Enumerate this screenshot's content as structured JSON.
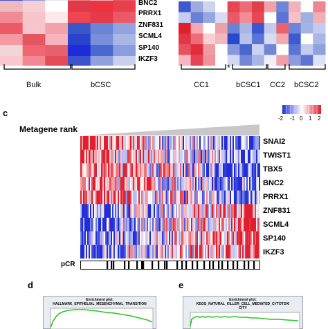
{
  "panel_top": {
    "genes": [
      "BNC2",
      "PRRX1",
      "ZNF831",
      "SCML4",
      "SP140",
      "IKZF3"
    ],
    "left_groups": [
      "Bulk",
      "bCSC"
    ],
    "right_groups": [
      "CC1",
      "bCSC1",
      "CC2",
      "bCSC2"
    ],
    "asterisk": "*",
    "left_rows": [
      [
        "#f0b8bf",
        "#f4d0d4",
        "#ffffff",
        "#e03a48",
        "#ee3340",
        "#e8404c"
      ],
      [
        "#f08a94",
        "#f6c4ca",
        "#fde8ea",
        "#ef4553",
        "#e53a47",
        "#ec5966"
      ],
      [
        "#ec5a67",
        "#f7c5cc",
        "#f3a2ab",
        "#3858c8",
        "#6a84d6",
        "#92a3df"
      ],
      [
        "#f59aa3",
        "#e55662",
        "#f6b4bc",
        "#2a43cf",
        "#7a8fdb",
        "#aab6e6"
      ],
      [
        "#f2d5d9",
        "#ef6570",
        "#e6616c",
        "#1e2bd8",
        "#4b68d2",
        "#8a9edf"
      ],
      [
        "#f7c8ce",
        "#f28891",
        "#e34b57",
        "#3c52cc",
        "#90a1de",
        "#c8d0ee"
      ]
    ],
    "right_rows": [
      [
        "#3f5ad0",
        "#9cabe2",
        "#cdd4ef",
        "#ffffff",
        "#e84452",
        "#ee6a75",
        "#e0404e",
        "#f2a1a9",
        "#6f86d8",
        "#f2b2b9",
        "#ffffff",
        "#ed8690"
      ],
      [
        "#c4cdef",
        "#6a80d6",
        "#97a7e1",
        "#d8dcf2",
        "#ea5a66",
        "#f48c96",
        "#e84853",
        "#ffffff",
        "#5a74d4",
        "#f7c0c6",
        "#9db0e3",
        "#f1aeb5"
      ],
      [
        "#e01e2d",
        "#f6a7af",
        "#ffffff",
        "#eea0a8",
        "#6a82d6",
        "#a8b6e6",
        "#3c58cc",
        "#c1cbee",
        "#e9626d",
        "#6e86d8",
        "#a4b3e5",
        "#c2cdee"
      ],
      [
        "#e23644",
        "#ec6d78",
        "#f8cfd4",
        "#f2b8be",
        "#2a48cb",
        "#b7c3ea",
        "#5c75d4",
        "#d6ddf3",
        "#f2a9b0",
        "#3d5bcf",
        "#ffffff",
        "#a8b7e6"
      ],
      [
        "#e8525e",
        "#e12e3c",
        "#f09aa2",
        "#ffffff",
        "#8699dd",
        "#4a66cf",
        "#c9d2f0",
        "#7086d8",
        "#ffffff",
        "#5b73d3",
        "#c3ccee",
        "#8fa2de"
      ],
      [
        "#f7b7be",
        "#e54553",
        "#f1929b",
        "#ffffff",
        "#d1d8f2",
        "#7287d8",
        "#a7b5e5",
        "#eef0fa",
        "#f0a0a8",
        "#8a9cdc",
        "#5d74d4",
        "#dce2f5"
      ]
    ]
  },
  "panel_c": {
    "letter": "c",
    "title": "Metagene rank",
    "genes": [
      "SNAI2",
      "TWIST1",
      "TBX5",
      "BNC2",
      "PRRX1",
      "ZNF831",
      "SCML4",
      "SP140",
      "IKZF3"
    ],
    "pcr_label": "pCR",
    "colorbar_ticks": [
      "-2",
      "-1",
      "0",
      "1",
      "2"
    ],
    "colorbar_colors": [
      "#1f2ed6",
      "#ffffff",
      "#e01e2d"
    ]
  },
  "panel_d": {
    "letter": "d",
    "subtitle": "Enrichment plot:",
    "title": "HALLMARK_EPITHELIAL_MESENCHYMAL_TRANSITION"
  },
  "panel_e": {
    "letter": "e",
    "subtitle": "Enrichment plot:",
    "title_line1": "KEGG_NATURAL_KILLER_CELL_MEDIATED_CYTOTOXI",
    "title_line2": "CITY"
  },
  "colors": {
    "enrichment_curve": "#22c922",
    "heatmap_red": "#e01e2d",
    "heatmap_blue": "#1f2ed6"
  }
}
